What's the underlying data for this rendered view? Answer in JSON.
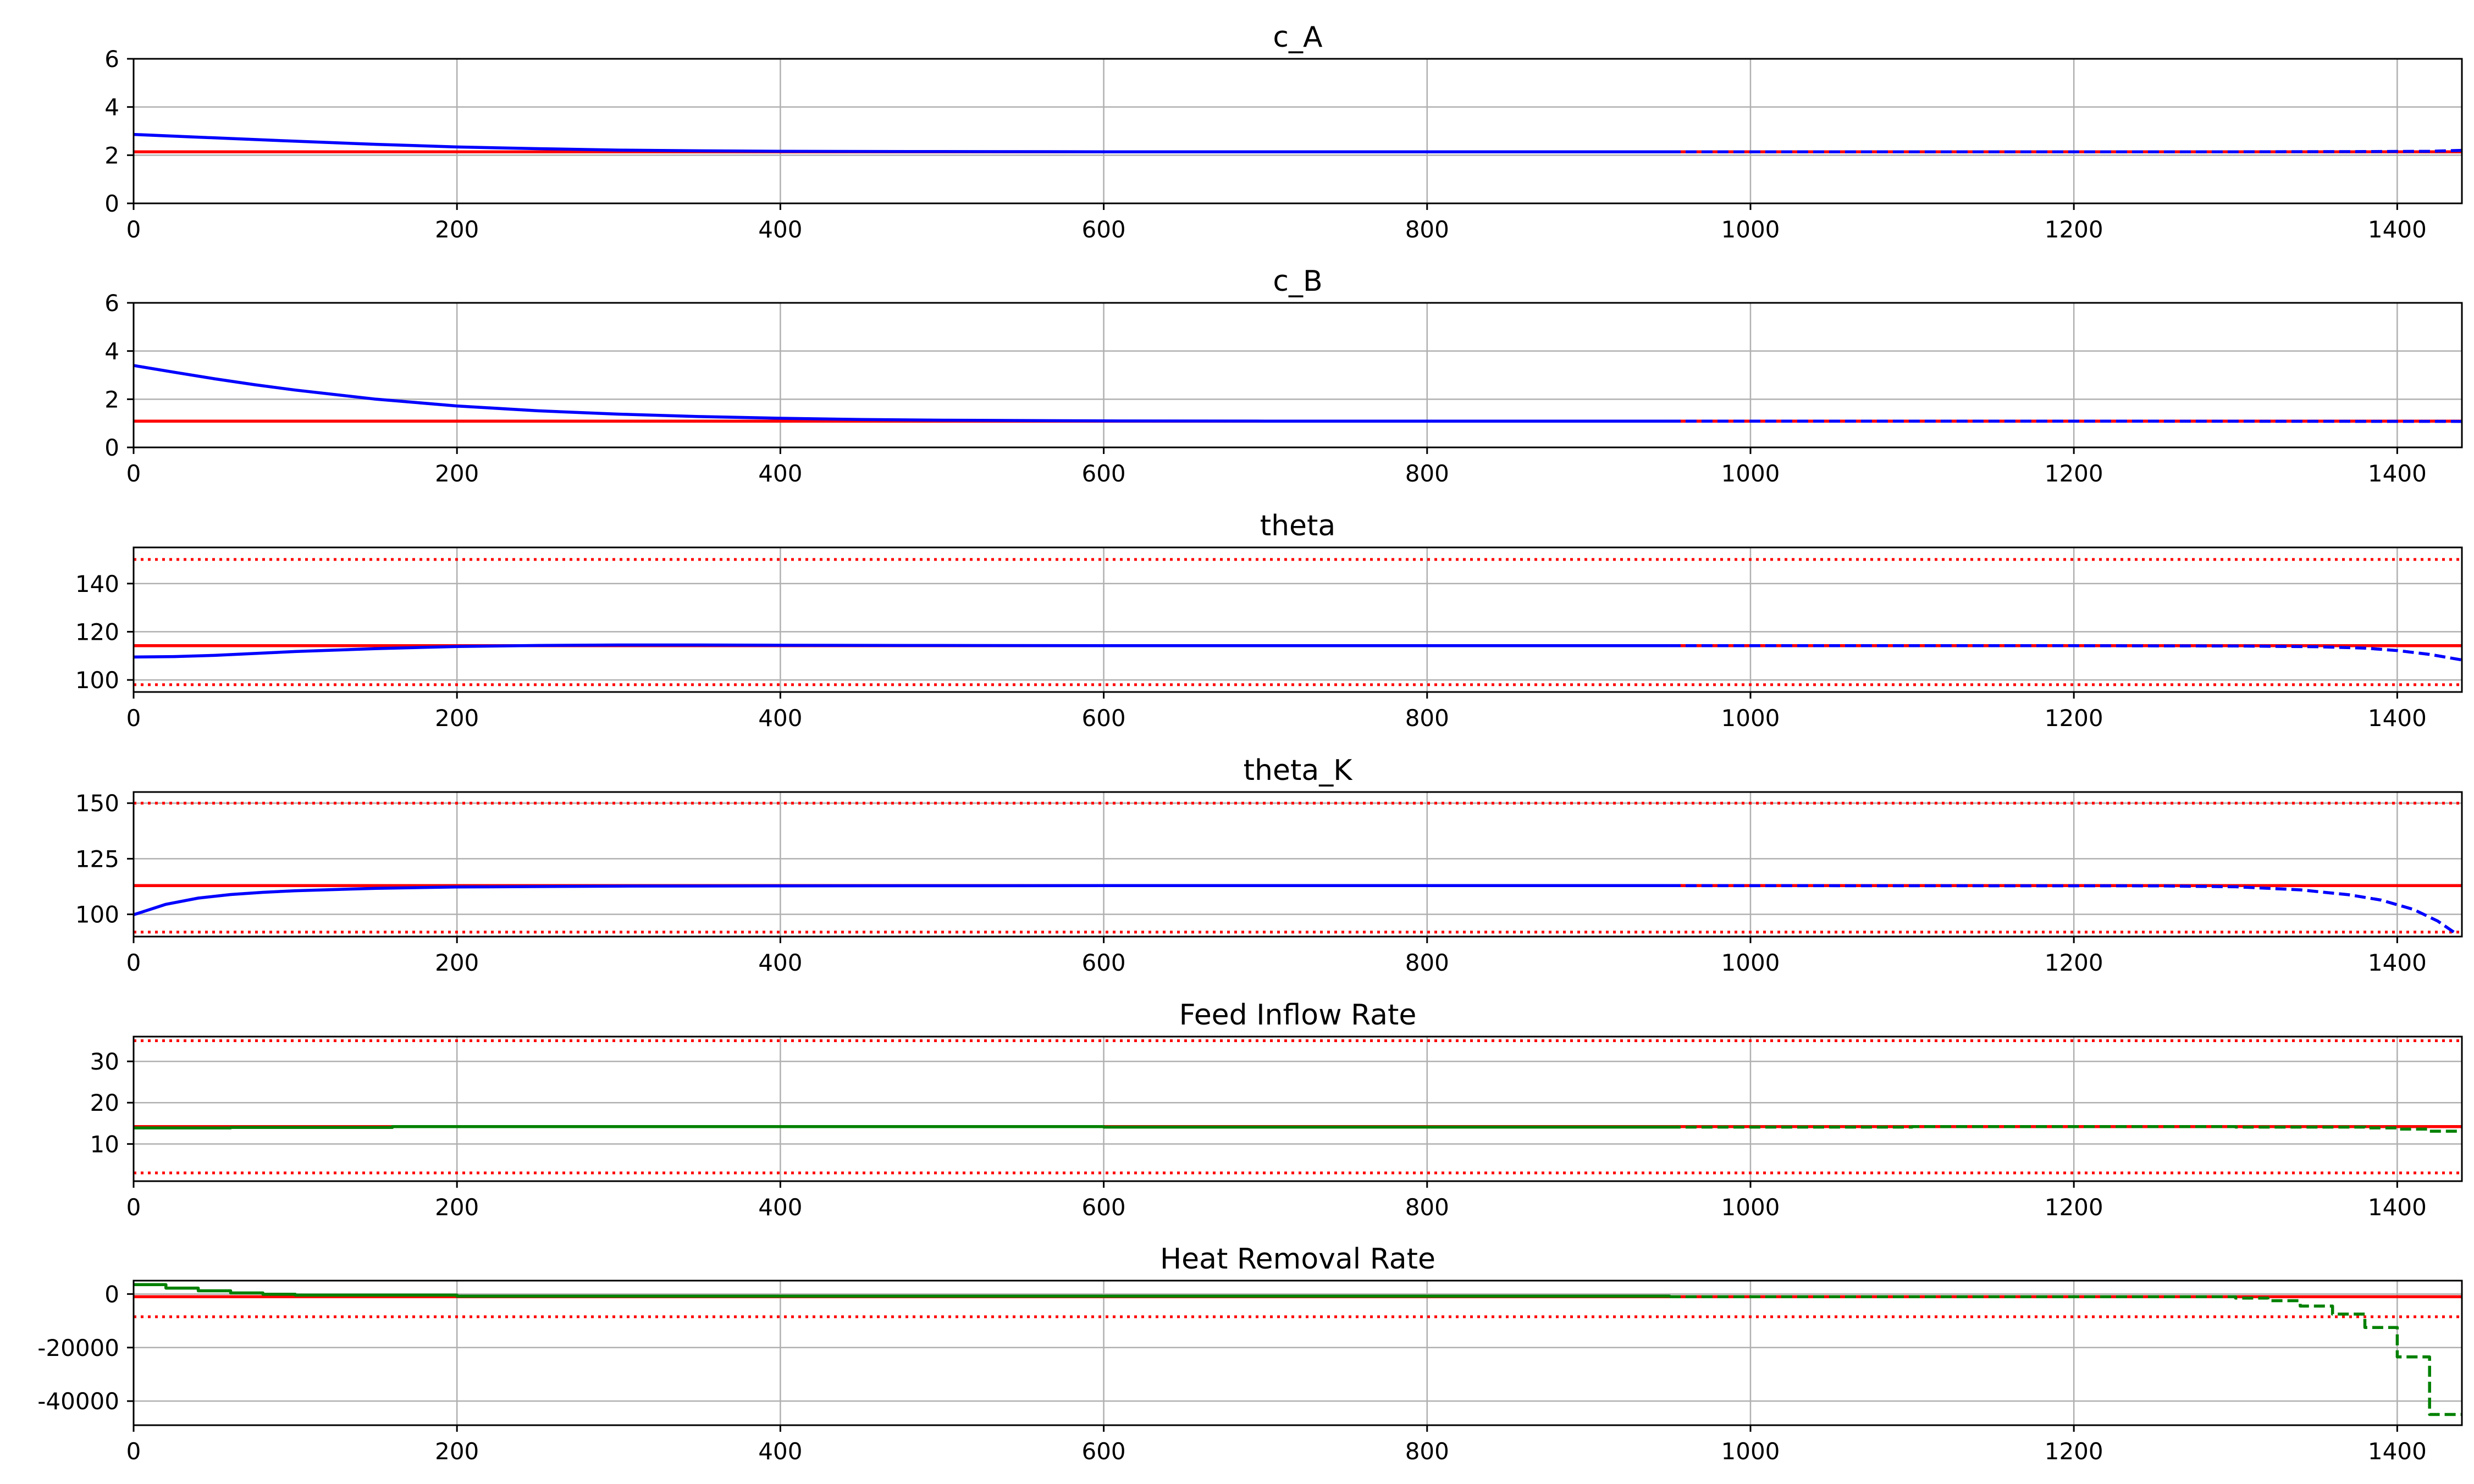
{
  "figure": {
    "background": "#ffffff",
    "colors": {
      "state": "#0000ff",
      "input": "#008000",
      "reference": "#ff0000",
      "bound": "#ff0000",
      "grid": "#b0b0b0"
    }
  },
  "chart_data": [
    {
      "type": "line",
      "title": "c_A",
      "xlabel": "",
      "ylabel": "",
      "xlim": [
        0,
        1440
      ],
      "ylim": [
        0,
        6
      ],
      "xticks": [
        "0",
        "200",
        "400",
        "600",
        "800",
        "1000",
        "1200",
        "1400"
      ],
      "yticks": [
        "0",
        "2",
        "4",
        "6"
      ],
      "grid": true,
      "legend": "none",
      "series": [
        {
          "role": "reference",
          "color": "#ff0000",
          "style": "solid",
          "x": [
            0,
            1440
          ],
          "y": [
            2.14,
            2.14
          ]
        },
        {
          "role": "state",
          "color": "#0000ff",
          "style": "solid",
          "x": [
            0,
            50,
            100,
            150,
            200,
            250,
            300,
            350,
            400,
            500,
            600,
            700,
            800,
            950
          ],
          "y": [
            2.86,
            2.72,
            2.58,
            2.45,
            2.34,
            2.27,
            2.21,
            2.18,
            2.16,
            2.15,
            2.14,
            2.14,
            2.14,
            2.14
          ]
        },
        {
          "role": "prediction",
          "color": "#0000ff",
          "style": "dashed",
          "x": [
            950,
            1100,
            1200,
            1300,
            1380,
            1420,
            1440
          ],
          "y": [
            2.14,
            2.14,
            2.14,
            2.14,
            2.15,
            2.16,
            2.2
          ]
        }
      ]
    },
    {
      "type": "line",
      "title": "c_B",
      "xlabel": "",
      "ylabel": "",
      "xlim": [
        0,
        1440
      ],
      "ylim": [
        0,
        6
      ],
      "xticks": [
        "0",
        "200",
        "400",
        "600",
        "800",
        "1000",
        "1200",
        "1400"
      ],
      "yticks": [
        "0",
        "2",
        "4",
        "6"
      ],
      "grid": true,
      "legend": "none",
      "series": [
        {
          "role": "reference",
          "color": "#ff0000",
          "style": "solid",
          "x": [
            0,
            1440
          ],
          "y": [
            1.09,
            1.09
          ]
        },
        {
          "role": "state",
          "color": "#0000ff",
          "style": "solid",
          "x": [
            0,
            25,
            50,
            75,
            100,
            150,
            200,
            250,
            300,
            350,
            400,
            450,
            500,
            600,
            700,
            800,
            950
          ],
          "y": [
            3.4,
            3.12,
            2.85,
            2.6,
            2.38,
            2.0,
            1.72,
            1.52,
            1.38,
            1.28,
            1.21,
            1.16,
            1.13,
            1.1,
            1.09,
            1.09,
            1.09
          ]
        },
        {
          "role": "prediction",
          "color": "#0000ff",
          "style": "dashed",
          "x": [
            950,
            1200,
            1440
          ],
          "y": [
            1.09,
            1.09,
            1.08
          ]
        }
      ]
    },
    {
      "type": "line",
      "title": "theta",
      "xlabel": "",
      "ylabel": "",
      "xlim": [
        0,
        1440
      ],
      "ylim": [
        95,
        155
      ],
      "xticks": [
        "0",
        "200",
        "400",
        "600",
        "800",
        "1000",
        "1200",
        "1400"
      ],
      "yticks": [
        "100",
        "120",
        "140"
      ],
      "grid": true,
      "legend": "none",
      "series": [
        {
          "role": "upper-bound",
          "color": "#ff0000",
          "style": "dotted",
          "x": [
            0,
            1440
          ],
          "y": [
            150,
            150
          ]
        },
        {
          "role": "lower-bound",
          "color": "#ff0000",
          "style": "dotted",
          "x": [
            0,
            1440
          ],
          "y": [
            98,
            98
          ]
        },
        {
          "role": "reference",
          "color": "#ff0000",
          "style": "solid",
          "x": [
            0,
            1440
          ],
          "y": [
            114.2,
            114.2
          ]
        },
        {
          "role": "state",
          "color": "#0000ff",
          "style": "solid",
          "x": [
            0,
            25,
            50,
            100,
            150,
            200,
            250,
            300,
            350,
            400,
            500,
            600,
            800,
            950
          ],
          "y": [
            109.5,
            109.7,
            110.2,
            111.8,
            113.0,
            113.9,
            114.3,
            114.5,
            114.5,
            114.4,
            114.3,
            114.2,
            114.2,
            114.2
          ]
        },
        {
          "role": "prediction",
          "color": "#0000ff",
          "style": "dashed",
          "x": [
            950,
            1200,
            1300,
            1350,
            1380,
            1400,
            1420,
            1440
          ],
          "y": [
            114.2,
            114.2,
            114.1,
            113.8,
            113.2,
            112.2,
            110.6,
            108.3
          ]
        }
      ]
    },
    {
      "type": "line",
      "title": "theta_K",
      "xlabel": "",
      "ylabel": "",
      "xlim": [
        0,
        1440
      ],
      "ylim": [
        90,
        155
      ],
      "xticks": [
        "0",
        "200",
        "400",
        "600",
        "800",
        "1000",
        "1200",
        "1400"
      ],
      "yticks": [
        "100",
        "125",
        "150"
      ],
      "grid": true,
      "legend": "none",
      "series": [
        {
          "role": "upper-bound",
          "color": "#ff0000",
          "style": "dotted",
          "x": [
            0,
            1440
          ],
          "y": [
            150,
            150
          ]
        },
        {
          "role": "lower-bound",
          "color": "#ff0000",
          "style": "dotted",
          "x": [
            0,
            1440
          ],
          "y": [
            92,
            92
          ]
        },
        {
          "role": "reference",
          "color": "#ff0000",
          "style": "solid",
          "x": [
            0,
            1440
          ],
          "y": [
            112.9,
            112.9
          ]
        },
        {
          "role": "state",
          "color": "#0000ff",
          "style": "solid",
          "x": [
            0,
            20,
            40,
            60,
            80,
            100,
            150,
            200,
            300,
            400,
            600,
            950
          ],
          "y": [
            99.8,
            104.5,
            107.3,
            108.9,
            109.9,
            110.6,
            111.7,
            112.3,
            112.7,
            112.8,
            112.9,
            112.9
          ]
        },
        {
          "role": "prediction",
          "color": "#0000ff",
          "style": "dashed",
          "x": [
            950,
            1250,
            1300,
            1340,
            1370,
            1390,
            1410,
            1425,
            1435
          ],
          "y": [
            112.9,
            112.8,
            112.4,
            111.0,
            108.8,
            106.4,
            102.2,
            97.0,
            92.0
          ]
        }
      ]
    },
    {
      "type": "line",
      "title": "Feed Inflow Rate",
      "xlabel": "",
      "ylabel": "",
      "xlim": [
        0,
        1440
      ],
      "ylim": [
        1,
        36
      ],
      "xticks": [
        "0",
        "200",
        "400",
        "600",
        "800",
        "1000",
        "1200",
        "1400"
      ],
      "yticks": [
        "10",
        "20",
        "30"
      ],
      "grid": true,
      "legend": "none",
      "series": [
        {
          "role": "upper-bound",
          "color": "#ff0000",
          "style": "dotted",
          "x": [
            0,
            1440
          ],
          "y": [
            35,
            35
          ]
        },
        {
          "role": "lower-bound",
          "color": "#ff0000",
          "style": "dotted",
          "x": [
            0,
            1440
          ],
          "y": [
            3,
            3
          ]
        },
        {
          "role": "reference",
          "color": "#ff0000",
          "style": "solid",
          "x": [
            0,
            1440
          ],
          "y": [
            14.2,
            14.2
          ]
        },
        {
          "role": "input",
          "color": "#008000",
          "style": "solid",
          "step": true,
          "x": [
            0,
            60,
            160,
            600,
            950
          ],
          "y": [
            13.9,
            14.0,
            14.2,
            14.1,
            14.1
          ]
        },
        {
          "role": "input-prediction",
          "color": "#008000",
          "style": "dashed",
          "step": true,
          "x": [
            950,
            1100,
            1300,
            1380,
            1400,
            1420,
            1440
          ],
          "y": [
            14.1,
            14.2,
            14.1,
            13.9,
            13.6,
            13.1,
            13.1
          ]
        }
      ]
    },
    {
      "type": "line",
      "title": "Heat Removal Rate",
      "xlabel": "",
      "ylabel": "",
      "xlim": [
        0,
        1440
      ],
      "ylim": [
        -49000,
        5000
      ],
      "xticks": [
        "0",
        "200",
        "400",
        "600",
        "800",
        "1000",
        "1200",
        "1400"
      ],
      "yticks": [
        "-40000",
        "-20000",
        "0"
      ],
      "grid": true,
      "legend": "none",
      "series": [
        {
          "role": "lower-bound",
          "color": "#ff0000",
          "style": "dotted",
          "x": [
            0,
            1440
          ],
          "y": [
            -8500,
            -8500
          ]
        },
        {
          "role": "reference",
          "color": "#ff0000",
          "style": "solid",
          "x": [
            0,
            1440
          ],
          "y": [
            -1000,
            -1000
          ]
        },
        {
          "role": "input",
          "color": "#008000",
          "style": "solid",
          "step": true,
          "x": [
            0,
            20,
            40,
            60,
            80,
            100,
            200,
            950
          ],
          "y": [
            3500,
            2200,
            1200,
            400,
            -100,
            -400,
            -800,
            -1000
          ]
        },
        {
          "role": "input-prediction",
          "color": "#008000",
          "style": "dashed",
          "step": true,
          "x": [
            950,
            1300,
            1320,
            1340,
            1360,
            1380,
            1400,
            1420,
            1440
          ],
          "y": [
            -1000,
            -1500,
            -2500,
            -4500,
            -7500,
            -12500,
            -23500,
            -45000,
            -45000
          ]
        }
      ]
    }
  ]
}
